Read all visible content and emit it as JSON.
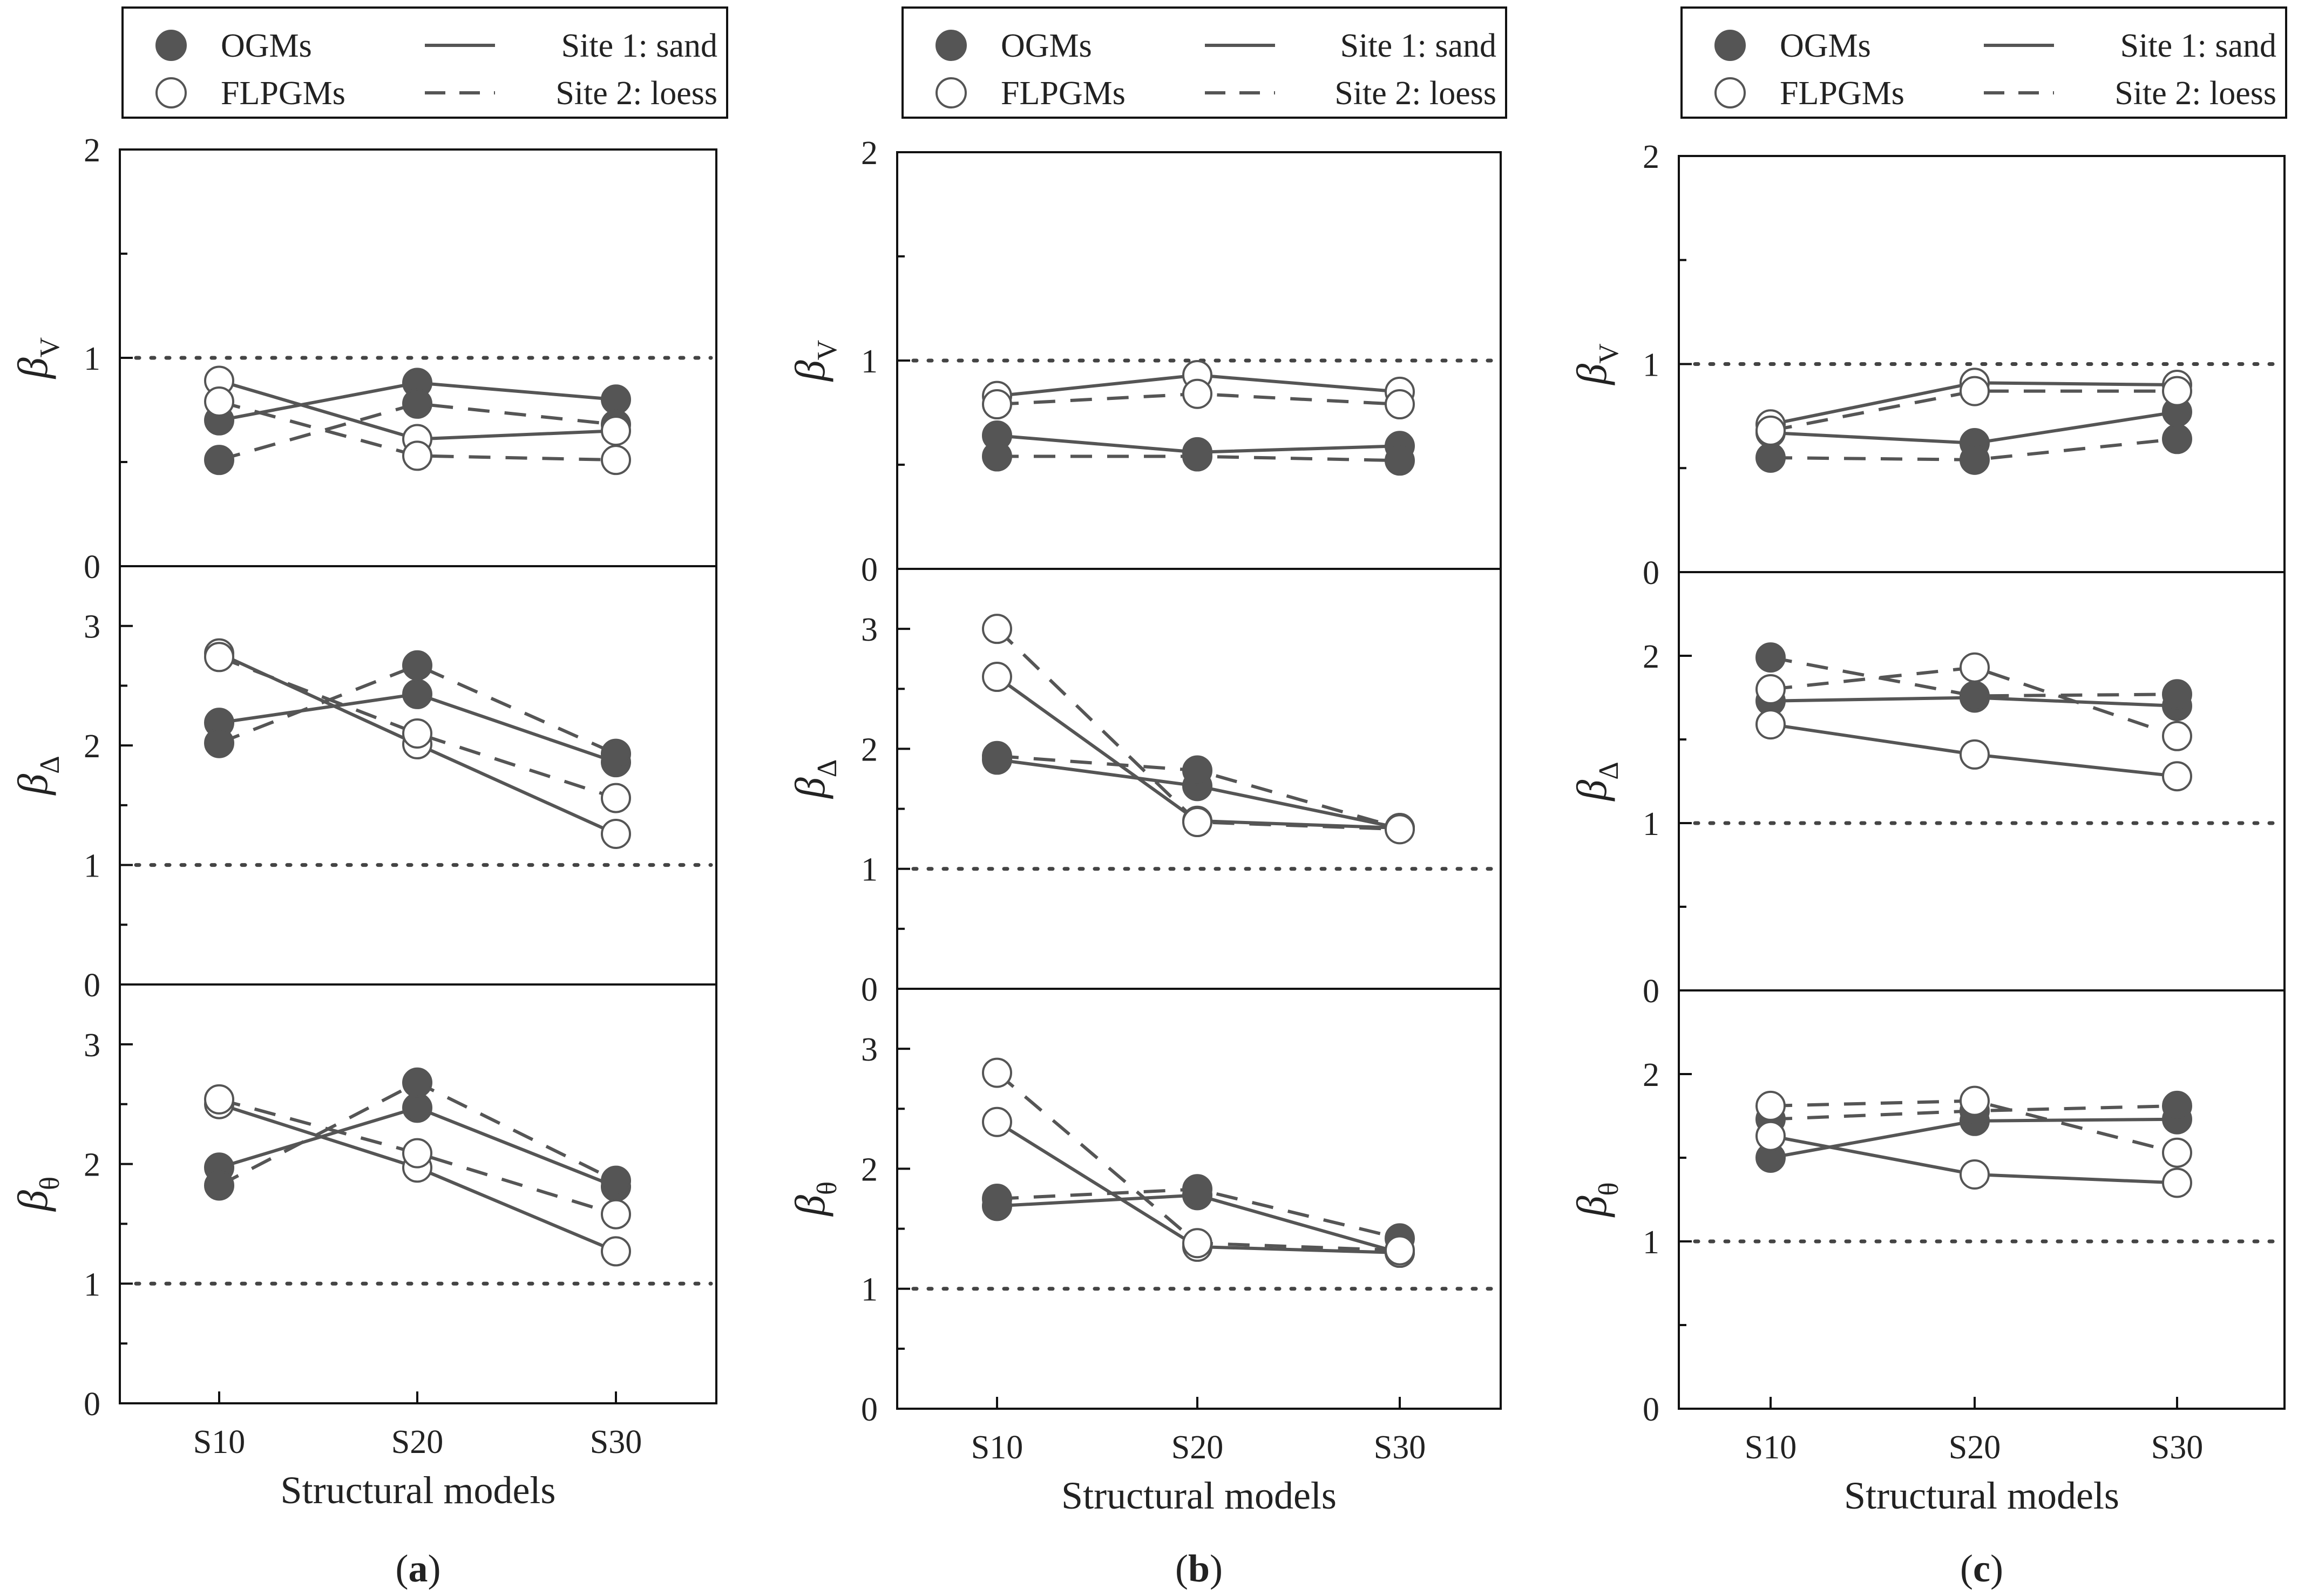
{
  "colors": {
    "series": "#555555",
    "axis": "#111111",
    "reference": "#444444",
    "open_fill": "#ffffff"
  },
  "legend": {
    "ogms_label": "OGMs",
    "flpgms_label": "FLPGMs",
    "site1_label": "Site 1: sand",
    "site2_label": "Site 2: loess"
  },
  "xaxis": {
    "label": "Structural models",
    "categories": [
      "S10",
      "S20",
      "S30"
    ]
  },
  "chart_data": [
    {
      "type": "line",
      "label": "(a)",
      "letter": "a",
      "panels": [
        {
          "ylabel": "β",
          "ylabel_sub": "V",
          "ylim": [
            0,
            2
          ],
          "ticks": [
            "0",
            "1",
            "2"
          ],
          "reference": 1,
          "series": [
            {
              "name": "OGMs, Site 1: sand",
              "values": [
                0.7,
                0.88,
                0.8
              ]
            },
            {
              "name": "OGMs, Site 2: loess",
              "values": [
                0.51,
                0.78,
                0.68
              ]
            },
            {
              "name": "FLPGMs, Site 1: sand",
              "values": [
                0.89,
                0.61,
                0.65
              ]
            },
            {
              "name": "FLPGMs, Site 2: loess",
              "values": [
                0.79,
                0.53,
                0.51
              ]
            }
          ]
        },
        {
          "ylabel": "β",
          "ylabel_sub": "Δ",
          "ylim": [
            0,
            3.5
          ],
          "ticks": [
            "0",
            "1",
            "2",
            "3"
          ],
          "reference": 1,
          "series": [
            {
              "name": "OGMs, Site 1: sand",
              "values": [
                2.19,
                2.43,
                1.86
              ]
            },
            {
              "name": "OGMs, Site 2: loess",
              "values": [
                2.02,
                2.67,
                1.93
              ]
            },
            {
              "name": "FLPGMs, Site 1: sand",
              "values": [
                2.77,
                2.01,
                1.26
              ]
            },
            {
              "name": "FLPGMs, Site 2: loess",
              "values": [
                2.74,
                2.1,
                1.56
              ]
            }
          ]
        },
        {
          "ylabel": "β",
          "ylabel_sub": "θ",
          "ylim": [
            0,
            3.5
          ],
          "ticks": [
            "0",
            "1",
            "2",
            "3"
          ],
          "reference": 1,
          "series": [
            {
              "name": "OGMs, Site 1: sand",
              "values": [
                1.97,
                2.47,
                1.81
              ]
            },
            {
              "name": "OGMs, Site 2: loess",
              "values": [
                1.82,
                2.68,
                1.86
              ]
            },
            {
              "name": "FLPGMs, Site 1: sand",
              "values": [
                2.5,
                1.97,
                1.27
              ]
            },
            {
              "name": "FLPGMs, Site 2: loess",
              "values": [
                2.54,
                2.09,
                1.58
              ]
            }
          ]
        }
      ]
    },
    {
      "type": "line",
      "label": "(b)",
      "letter": "b",
      "panels": [
        {
          "ylabel": "β",
          "ylabel_sub": "V",
          "ylim": [
            0,
            2
          ],
          "ticks": [
            "0",
            "1",
            "2"
          ],
          "reference": 1,
          "series": [
            {
              "name": "OGMs, Site 1: sand",
              "values": [
                0.64,
                0.56,
                0.59
              ]
            },
            {
              "name": "OGMs, Site 2: loess",
              "values": [
                0.54,
                0.54,
                0.52
              ]
            },
            {
              "name": "FLPGMs, Site 1: sand",
              "values": [
                0.83,
                0.93,
                0.85
              ]
            },
            {
              "name": "FLPGMs, Site 2: loess",
              "values": [
                0.79,
                0.84,
                0.79
              ]
            }
          ]
        },
        {
          "ylabel": "β",
          "ylabel_sub": "Δ",
          "ylim": [
            0,
            3.5
          ],
          "ticks": [
            "0",
            "1",
            "2",
            "3"
          ],
          "reference": 1,
          "series": [
            {
              "name": "OGMs, Site 1: sand",
              "values": [
                1.91,
                1.69,
                1.34
              ]
            },
            {
              "name": "OGMs, Site 2: loess",
              "values": [
                1.94,
                1.82,
                1.34
              ]
            },
            {
              "name": "FLPGMs, Site 1: sand",
              "values": [
                2.6,
                1.4,
                1.34
              ]
            },
            {
              "name": "FLPGMs, Site 2: loess",
              "values": [
                3.0,
                1.39,
                1.33
              ]
            }
          ]
        },
        {
          "ylabel": "β",
          "ylabel_sub": "θ",
          "ylim": [
            0,
            3.5
          ],
          "ticks": [
            "0",
            "1",
            "2",
            "3"
          ],
          "reference": 1,
          "series": [
            {
              "name": "OGMs, Site 1: sand",
              "values": [
                1.69,
                1.78,
                1.3
              ]
            },
            {
              "name": "OGMs, Site 2: loess",
              "values": [
                1.75,
                1.83,
                1.42
              ]
            },
            {
              "name": "FLPGMs, Site 1: sand",
              "values": [
                2.39,
                1.35,
                1.3
              ]
            },
            {
              "name": "FLPGMs, Site 2: loess",
              "values": [
                2.8,
                1.38,
                1.32
              ]
            }
          ]
        }
      ]
    },
    {
      "type": "line",
      "label": "(c)",
      "letter": "c",
      "panels": [
        {
          "ylabel": "β",
          "ylabel_sub": "V",
          "ylim": [
            0,
            2
          ],
          "ticks": [
            "0",
            "1",
            "2"
          ],
          "reference": 1,
          "series": [
            {
              "name": "OGMs, Site 1: sand",
              "values": [
                0.67,
                0.62,
                0.77
              ]
            },
            {
              "name": "OGMs, Site 2: loess",
              "values": [
                0.55,
                0.54,
                0.64
              ]
            },
            {
              "name": "FLPGMs, Site 1: sand",
              "values": [
                0.71,
                0.91,
                0.9
              ]
            },
            {
              "name": "FLPGMs, Site 2: loess",
              "values": [
                0.68,
                0.87,
                0.87
              ]
            }
          ]
        },
        {
          "ylabel": "β",
          "ylabel_sub": "Δ",
          "ylim": [
            0,
            2.5
          ],
          "ticks": [
            "0",
            "1",
            "2"
          ],
          "reference": 1,
          "series": [
            {
              "name": "OGMs, Site 1: sand",
              "values": [
                1.73,
                1.75,
                1.7
              ]
            },
            {
              "name": "OGMs, Site 2: loess",
              "values": [
                1.99,
                1.76,
                1.77
              ]
            },
            {
              "name": "FLPGMs, Site 1: sand",
              "values": [
                1.59,
                1.41,
                1.28
              ]
            },
            {
              "name": "FLPGMs, Site 2: loess",
              "values": [
                1.8,
                1.93,
                1.52
              ]
            }
          ]
        },
        {
          "ylabel": "β",
          "ylabel_sub": "θ",
          "ylim": [
            0,
            2.5
          ],
          "ticks": [
            "0",
            "1",
            "2"
          ],
          "reference": 1,
          "series": [
            {
              "name": "OGMs, Site 1: sand",
              "values": [
                1.5,
                1.72,
                1.73
              ]
            },
            {
              "name": "OGMs, Site 2: loess",
              "values": [
                1.73,
                1.78,
                1.81
              ]
            },
            {
              "name": "FLPGMs, Site 1: sand",
              "values": [
                1.63,
                1.4,
                1.35
              ]
            },
            {
              "name": "FLPGMs, Site 2: loess",
              "values": [
                1.81,
                1.84,
                1.53
              ]
            }
          ]
        }
      ]
    }
  ]
}
